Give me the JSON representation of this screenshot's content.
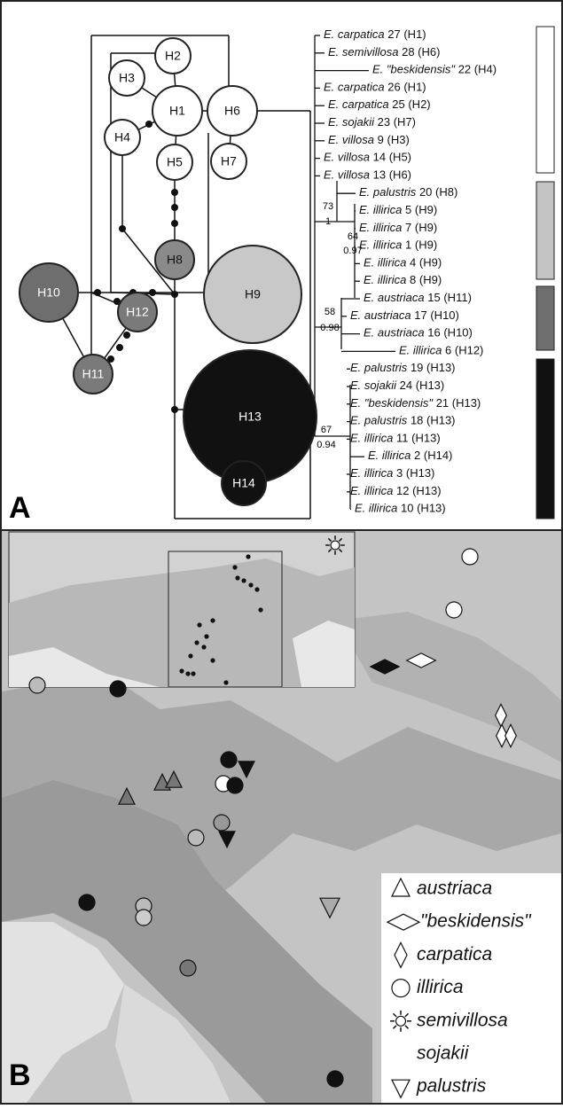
{
  "panel_a": {
    "label": "A",
    "network": [
      "H1",
      "H2",
      "H3",
      "H4",
      "H5",
      "H6",
      "H7",
      "H8",
      "H9",
      "H10",
      "H11",
      "H12",
      "H13",
      "H14"
    ],
    "tips": [
      {
        "name": "E. carpatica",
        "code": "27 (H1)"
      },
      {
        "name": "E. semivillosa",
        "code": "28 (H6)"
      },
      {
        "name": "E. \"beskidensis\"",
        "code": "22 (H4)"
      },
      {
        "name": "E. carpatica",
        "code": "26 (H1)"
      },
      {
        "name": "E. carpatica",
        "code": "25 (H2)"
      },
      {
        "name": "E. sojakii",
        "code": "23 (H7)"
      },
      {
        "name": "E. villosa",
        "code": "9 (H3)"
      },
      {
        "name": "E. villosa",
        "code": "14 (H5)"
      },
      {
        "name": "E. villosa",
        "code": "13 (H6)"
      },
      {
        "name": "E. palustris",
        "code": "20 (H8)"
      },
      {
        "name": "E. illirica",
        "code": "5 (H9)"
      },
      {
        "name": "E. illirica",
        "code": "7 (H9)"
      },
      {
        "name": "E. illirica",
        "code": "1 (H9)"
      },
      {
        "name": "E. illirica",
        "code": "4 (H9)"
      },
      {
        "name": "E. illirica",
        "code": "8 (H9)"
      },
      {
        "name": "E. austriaca",
        "code": "15 (H11)"
      },
      {
        "name": "E. austriaca",
        "code": "17 (H10)"
      },
      {
        "name": "E. austriaca",
        "code": "16 (H10)"
      },
      {
        "name": "E. illirica",
        "code": "6 (H12)"
      },
      {
        "name": "E. palustris",
        "code": "19 (H13)"
      },
      {
        "name": "E. sojakii",
        "code": "24 (H13)"
      },
      {
        "name": "E. \"beskidensis\"",
        "code": "21 (H13)"
      },
      {
        "name": "E. palustris",
        "code": "18 (H13)"
      },
      {
        "name": "E. illirica",
        "code": "11 (H13)"
      },
      {
        "name": "E. illirica",
        "code": "2 (H14)"
      },
      {
        "name": "E. illirica",
        "code": "3 (H13)"
      },
      {
        "name": "E. illirica",
        "code": "12 (H13)"
      },
      {
        "name": "E. illirica",
        "code": "10 (H13)"
      }
    ],
    "support": [
      "73",
      "1",
      "64",
      "0.97",
      "58",
      "0.98",
      "67",
      "0.94"
    ]
  },
  "panel_b": {
    "label": "B",
    "legend": [
      "austriaca",
      "\"beskidensis\"",
      "carpatica",
      "illirica",
      "semivillosa",
      "sojakii",
      "palustris"
    ]
  }
}
